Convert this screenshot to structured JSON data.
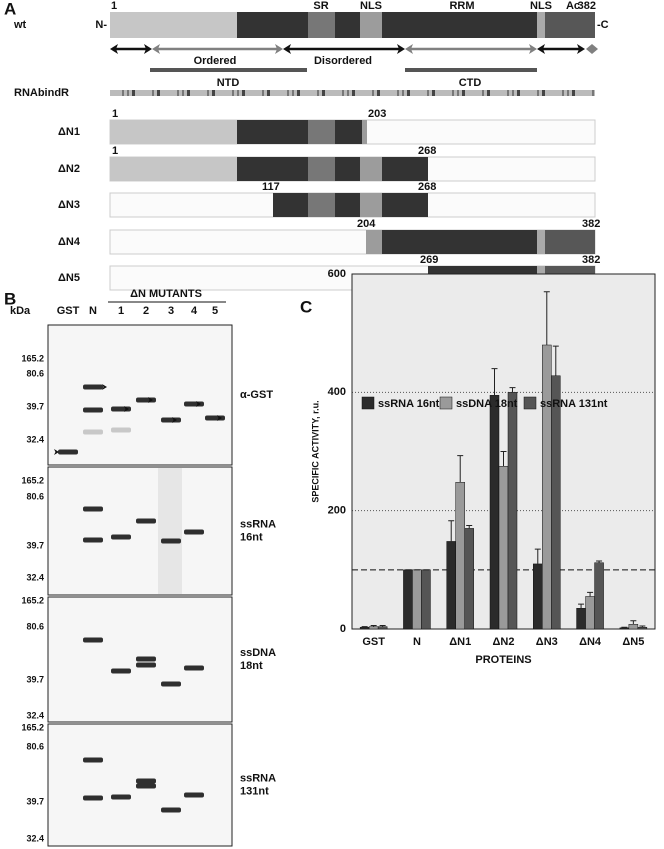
{
  "panel_a": {
    "label": "A",
    "wt_label": "wt",
    "n_term": "N-",
    "c_term": "-C",
    "start": 1,
    "end": 382,
    "domains": [
      "SR",
      "NLS",
      "RRM",
      "NLS",
      "Ac"
    ],
    "regions": [
      "Ordered",
      "Disordered"
    ],
    "domain_groups": [
      "NTD",
      "CTD"
    ],
    "track_label": "RNAbindR",
    "constructs": [
      {
        "name": "ΔN1",
        "start": 1,
        "end": 203
      },
      {
        "name": "ΔN2",
        "start": 1,
        "end": 268
      },
      {
        "name": "ΔN3",
        "start": 117,
        "end": 268
      },
      {
        "name": "ΔN4",
        "start": 204,
        "end": 382
      },
      {
        "name": "ΔN5",
        "start": 269,
        "end": 382
      }
    ]
  },
  "panel_b": {
    "label": "B",
    "kda": "kDa",
    "group_label": "ΔN MUTANTS",
    "lanes": [
      "GST",
      "N",
      "1",
      "2",
      "3",
      "4",
      "5"
    ],
    "blots": [
      {
        "label": [
          "α-GST"
        ],
        "markers": [
          165.2,
          80.6,
          39.7,
          32.4
        ]
      },
      {
        "label": [
          "ssRNA",
          "16nt"
        ],
        "markers": [
          165.2,
          80.6,
          39.7,
          32.4
        ]
      },
      {
        "label": [
          "ssDNA",
          "18nt"
        ],
        "markers": [
          165.2,
          80.6,
          39.7,
          32.4
        ]
      },
      {
        "label": [
          "ssRNA",
          "131nt"
        ],
        "markers": [
          165.2,
          80.6,
          39.7,
          32.4
        ]
      }
    ]
  },
  "chart_data": {
    "type": "bar",
    "panel_label": "C",
    "y_label": "SPECIFIC ACTIVITY, r.u.",
    "x_label": "PROTEINS",
    "categories": [
      "GST",
      "N",
      "ΔN1",
      "ΔN2",
      "ΔN3",
      "ΔN4",
      "ΔN5"
    ],
    "series": [
      {
        "name": "ssRNA 16nt",
        "color": "#2b2b2b",
        "values": [
          3,
          100,
          148,
          395,
          110,
          35,
          2
        ],
        "errors": [
          1,
          0,
          35,
          45,
          25,
          7,
          1
        ]
      },
      {
        "name": "ssDNA 18nt",
        "color": "#9a9a9a",
        "values": [
          4,
          100,
          248,
          275,
          480,
          55,
          8
        ],
        "errors": [
          2,
          0,
          45,
          25,
          90,
          7,
          6
        ]
      },
      {
        "name": "ssRNA 131nt",
        "color": "#555555",
        "values": [
          4,
          100,
          170,
          400,
          428,
          112,
          3
        ],
        "errors": [
          2,
          0,
          5,
          8,
          50,
          3,
          2
        ]
      }
    ],
    "ylim": [
      0,
      600
    ],
    "yticks": [
      0,
      200,
      400,
      600
    ],
    "grid": true,
    "reference_line": 100,
    "legend": "top"
  }
}
